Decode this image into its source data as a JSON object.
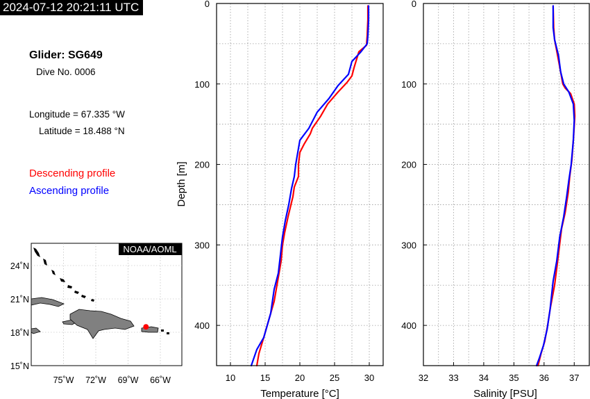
{
  "header": {
    "timestamp": "2024-07-12 20:21:11 UTC"
  },
  "info": {
    "glider": "Glider: SG649",
    "dive": "Dive No. 0006",
    "longitude": "Longitude = 67.335 °W",
    "latitude": "Latitude = 18.488 °N"
  },
  "legend": {
    "descending": "Descending profile",
    "ascending": "Ascending profile",
    "descending_color": "#ff0000",
    "ascending_color": "#0000ff"
  },
  "map": {
    "credit": "NOAA/AOML",
    "lat_ticks": [
      "24˚N",
      "21˚N",
      "18˚N",
      "15˚N"
    ],
    "lon_ticks": [
      "75˚W",
      "72˚W",
      "69˚W",
      "66˚W"
    ],
    "land_color": "#808080",
    "marker_color": "#ff0000",
    "marker_lon": -67.335,
    "marker_lat": 18.488,
    "lon_range": [
      -78,
      -64
    ],
    "lat_range": [
      15,
      26
    ]
  },
  "chart_data": [
    {
      "type": "line",
      "xlabel": "Temperature [°C]",
      "ylabel": "Depth [m]",
      "xlim": [
        8,
        32
      ],
      "ylim": [
        450,
        0
      ],
      "xticks": [
        10,
        15,
        20,
        25,
        30
      ],
      "yticks": [
        0,
        100,
        200,
        300,
        400
      ],
      "grid": true,
      "series": [
        {
          "color": "#ff0000",
          "x": [
            29.8,
            29.8,
            29.7,
            29.6,
            28.5,
            27.8,
            27.5,
            26.8,
            25.5,
            24.0,
            23.0,
            21.8,
            21.5,
            20.6,
            20.0,
            19.8,
            19.8,
            19.2,
            19.0,
            18.3,
            17.8,
            17.5,
            17.3,
            17.0,
            16.7,
            16.3,
            15.8,
            15.3,
            14.8,
            14.1,
            13.8
          ],
          "y": [
            3,
            20,
            40,
            52,
            60,
            80,
            90,
            98,
            110,
            125,
            140,
            155,
            162,
            175,
            185,
            200,
            215,
            228,
            240,
            265,
            285,
            300,
            320,
            335,
            350,
            370,
            385,
            400,
            415,
            435,
            450
          ]
        },
        {
          "color": "#0000ff",
          "x": [
            29.9,
            29.9,
            29.8,
            29.7,
            28.8,
            27.5,
            27.0,
            25.5,
            24.2,
            22.5,
            21.3,
            20.0,
            19.6,
            19.4,
            19.2,
            18.8,
            18.4,
            17.9,
            17.5,
            17.1,
            16.9,
            16.3,
            15.8,
            15.3,
            14.8,
            13.8,
            13.0
          ],
          "y": [
            3,
            20,
            40,
            50,
            60,
            72,
            88,
            102,
            118,
            135,
            155,
            170,
            190,
            200,
            215,
            230,
            250,
            270,
            290,
            320,
            335,
            355,
            385,
            400,
            415,
            430,
            450
          ]
        }
      ]
    },
    {
      "type": "line",
      "xlabel": "Salinity [PSU]",
      "xlim": [
        32,
        37.5
      ],
      "ylim": [
        450,
        0
      ],
      "xticks": [
        32,
        33,
        34,
        35,
        36,
        37
      ],
      "yticks": [
        0,
        100,
        200,
        300,
        400
      ],
      "grid": true,
      "series": [
        {
          "color": "#ff0000",
          "x": [
            36.3,
            36.32,
            36.35,
            36.45,
            36.55,
            36.62,
            36.7,
            36.88,
            37.0,
            37.02,
            36.98,
            36.92,
            36.85,
            36.8,
            36.7,
            36.58,
            36.45,
            36.35,
            36.2,
            36.12,
            36.02,
            35.9,
            35.8
          ],
          "y": [
            3,
            30,
            45,
            65,
            85,
            100,
            105,
            112,
            125,
            140,
            165,
            195,
            215,
            235,
            260,
            280,
            320,
            350,
            380,
            400,
            420,
            435,
            450
          ]
        },
        {
          "color": "#0000ff",
          "x": [
            36.3,
            36.3,
            36.35,
            36.48,
            36.55,
            36.65,
            36.82,
            36.97,
            37.0,
            36.97,
            36.9,
            36.82,
            36.75,
            36.65,
            36.52,
            36.42,
            36.3,
            36.2,
            36.1,
            35.98,
            35.85,
            35.75
          ],
          "y": [
            3,
            30,
            45,
            65,
            85,
            100,
            110,
            125,
            145,
            170,
            200,
            220,
            240,
            265,
            290,
            320,
            345,
            380,
            405,
            425,
            440,
            450
          ]
        }
      ]
    }
  ]
}
